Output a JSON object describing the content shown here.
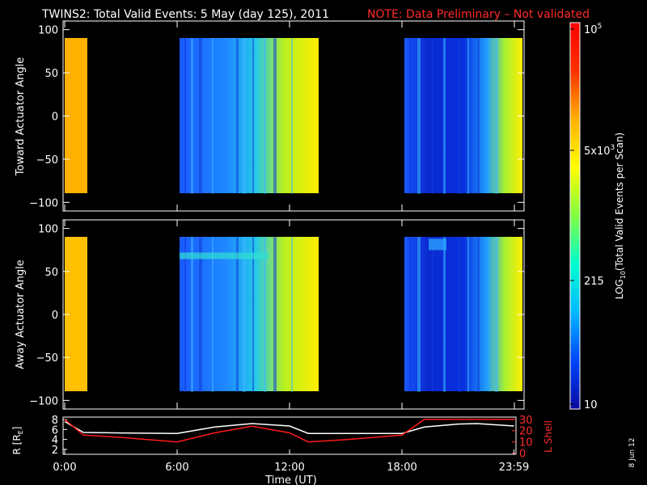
{
  "title": "TWINS2: Total Valid Events:  5 May (day 125), 2011",
  "note": "NOTE: Data Preliminary – Not validated",
  "date_stamp": "8 Jun 12",
  "chart_data": [
    {
      "type": "heatmap",
      "ylabel": "Toward Actuator Angle",
      "ylim": [
        -110,
        110
      ],
      "yticks": [
        "100",
        "50",
        "0",
        "−50",
        "−100"
      ],
      "data_blocks": [
        {
          "t_start": "0:00",
          "t_end": "1:00",
          "level": "high"
        },
        {
          "t_start": "6:00",
          "t_end": "13:15",
          "level": "low-to-high"
        },
        {
          "t_start": "18:00",
          "t_end": "23:59",
          "level": "low-to-high"
        }
      ]
    },
    {
      "type": "heatmap",
      "ylabel": "Away Actuator Angle",
      "ylim": [
        -110,
        110
      ],
      "yticks": [
        "100",
        "50",
        "0",
        "−50",
        "−100"
      ],
      "data_blocks": [
        {
          "t_start": "0:00",
          "t_end": "1:00",
          "level": "high"
        },
        {
          "t_start": "6:00",
          "t_end": "13:15",
          "level": "low-to-high"
        },
        {
          "t_start": "18:00",
          "t_end": "23:59",
          "level": "low-to-high"
        }
      ]
    },
    {
      "type": "line",
      "ylabel_left": "R [R",
      "ylabel_left_sub": "E",
      "ylabel_left_end": "]",
      "ylabel_right": "L Shell",
      "yticks_left": [
        "8",
        "6",
        "4",
        "2"
      ],
      "yticks_right": [
        "30",
        "20",
        "10",
        "0"
      ],
      "xticks": [
        "0:00",
        "6:00",
        "12:00",
        "18:00",
        "23:59"
      ],
      "xlabel": "Time (UT)",
      "x": [
        0,
        1,
        3,
        6,
        8,
        10,
        12,
        13,
        15,
        18,
        19.2,
        21,
        22,
        23.98
      ],
      "series": [
        {
          "axis": "left",
          "values": [
            7.6,
            5.4,
            5.3,
            5.2,
            6.5,
            7.2,
            6.7,
            5.2,
            5.2,
            5.2,
            6.5,
            7.1,
            7.2,
            6.7
          ]
        },
        {
          "axis": "right",
          "values": [
            30,
            16,
            14,
            10,
            18,
            24,
            18,
            10,
            12,
            16,
            30,
            30,
            30,
            30
          ]
        }
      ]
    }
  ],
  "colorbar": {
    "label": "LOG",
    "label_sub": "10",
    "label_rest": "(Total Valid Events per Scan)",
    "ticks": [
      "10",
      "215",
      "5x10",
      "10"
    ],
    "tick_sups": [
      "",
      "",
      "3",
      "5"
    ],
    "colors": [
      "#0a0aa0",
      "#0044ff",
      "#00b8ff",
      "#00ffd0",
      "#80ff40",
      "#ffff00",
      "#ffb000",
      "#ff3000",
      "#ff0000"
    ]
  }
}
